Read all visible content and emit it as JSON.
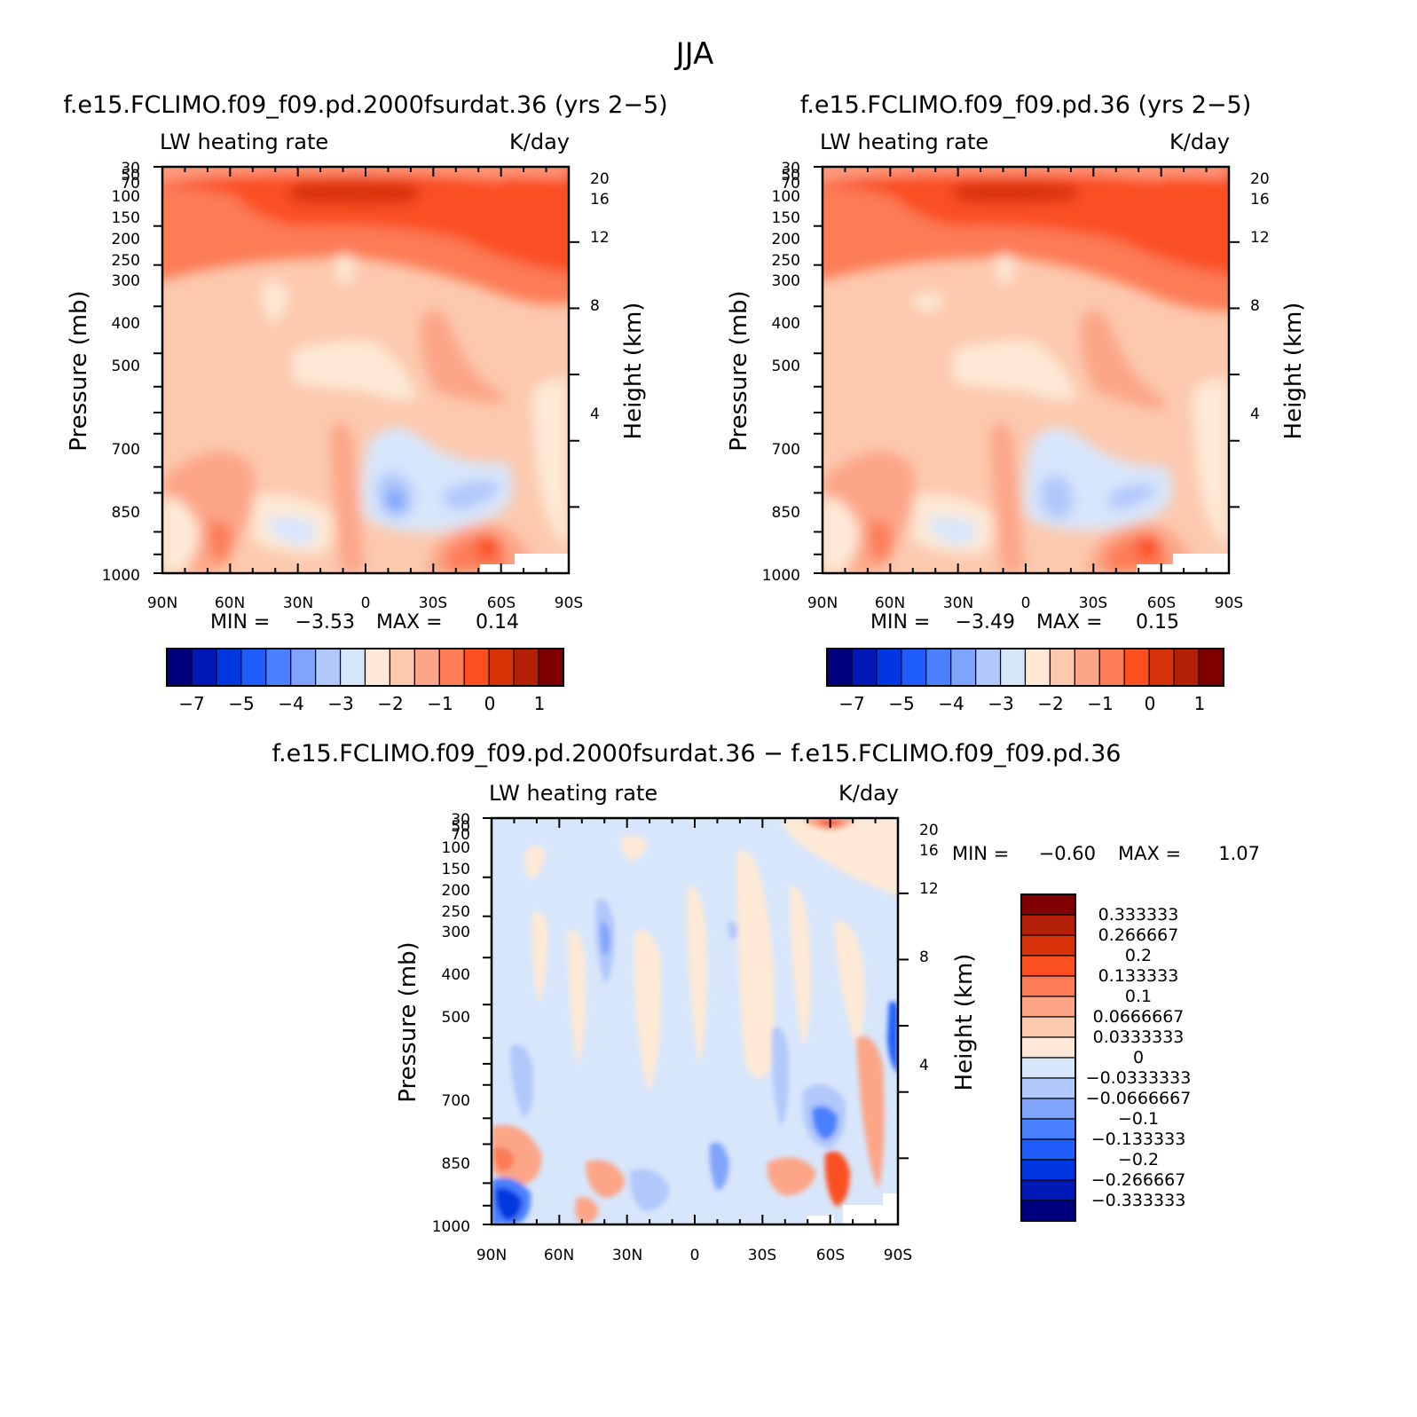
{
  "figure": {
    "title": "JJA"
  },
  "colors": {
    "absolute_scale": [
      "#00007f",
      "#0018b6",
      "#0037e0",
      "#1f5dfb",
      "#4a80fd",
      "#80a4fb",
      "#b1c8fb",
      "#d8e6fb",
      "#fde9d6",
      "#fcc9ae",
      "#fca587",
      "#fc7c56",
      "#fa5020",
      "#d83208",
      "#b41f08",
      "#800000"
    ],
    "difference_scale": [
      "#00007f",
      "#0018b6",
      "#0037e0",
      "#1f5dfb",
      "#4a80fd",
      "#80a4fb",
      "#b1c8fb",
      "#d8e6fb",
      "#fde9d6",
      "#fcc9ae",
      "#fca587",
      "#fc7c56",
      "#fa5020",
      "#d83208",
      "#b41f08",
      "#800000"
    ]
  },
  "chart_data": [
    {
      "type": "heatmap",
      "panel": "top-left",
      "title": "f.e15.FCLIMO.f09_f09.pd.2000fsurdat.36 (yrs 2−5)",
      "variable": "LW heating rate",
      "units": "K/day",
      "xlabel": "",
      "ylabel": "Pressure (mb)",
      "ylabel_right": "Height (km)",
      "x_ticks": [
        "90N",
        "60N",
        "30N",
        "0",
        "30S",
        "60S",
        "90S"
      ],
      "x_range": [
        90,
        -90
      ],
      "y_ticks": [
        "30",
        "50",
        "70",
        "100",
        "150",
        "200",
        "250",
        "300",
        "400",
        "500",
        "700",
        "850",
        "1000"
      ],
      "y_range": [
        30,
        1000
      ],
      "height_ticks": [
        "20",
        "16",
        "12",
        "8",
        "4"
      ],
      "min_label": "MIN =",
      "min_value": "−3.53",
      "max_label": "MAX =",
      "max_value": "0.14",
      "colorbar_labels": [
        "−7",
        "−5",
        "−4",
        "−3",
        "−2",
        "−1",
        "0",
        "1"
      ]
    },
    {
      "type": "heatmap",
      "panel": "top-right",
      "title": "f.e15.FCLIMO.f09_f09.pd.36 (yrs 2−5)",
      "variable": "LW heating rate",
      "units": "K/day",
      "xlabel": "",
      "ylabel": "Pressure (mb)",
      "ylabel_right": "Height (km)",
      "x_ticks": [
        "90N",
        "60N",
        "30N",
        "0",
        "30S",
        "60S",
        "90S"
      ],
      "x_range": [
        90,
        -90
      ],
      "y_ticks": [
        "30",
        "50",
        "70",
        "100",
        "150",
        "200",
        "250",
        "300",
        "400",
        "500",
        "700",
        "850",
        "1000"
      ],
      "y_range": [
        30,
        1000
      ],
      "height_ticks": [
        "20",
        "16",
        "12",
        "8",
        "4"
      ],
      "min_label": "MIN =",
      "min_value": "−3.49",
      "max_label": "MAX =",
      "max_value": "0.15",
      "colorbar_labels": [
        "−7",
        "−5",
        "−4",
        "−3",
        "−2",
        "−1",
        "0",
        "1"
      ]
    },
    {
      "type": "heatmap",
      "panel": "bottom",
      "title": "f.e15.FCLIMO.f09_f09.pd.2000fsurdat.36 − f.e15.FCLIMO.f09_f09.pd.36",
      "variable": "LW heating rate",
      "units": "K/day",
      "xlabel": "",
      "ylabel": "Pressure (mb)",
      "ylabel_right": "Height (km)",
      "x_ticks": [
        "90N",
        "60N",
        "30N",
        "0",
        "30S",
        "60S",
        "90S"
      ],
      "x_range": [
        90,
        -90
      ],
      "y_ticks": [
        "30",
        "50",
        "70",
        "100",
        "150",
        "200",
        "250",
        "300",
        "400",
        "500",
        "700",
        "850",
        "1000"
      ],
      "y_range": [
        30,
        1000
      ],
      "height_ticks": [
        "20",
        "16",
        "12",
        "8",
        "4"
      ],
      "min_label": "MIN =",
      "min_value": "−0.60",
      "max_label": "MAX =",
      "max_value": "1.07",
      "colorbar_labels": [
        "0.333333",
        "0.266667",
        "0.2",
        "0.133333",
        "0.1",
        "0.0666667",
        "0.0333333",
        "0",
        "−0.0333333",
        "−0.0666667",
        "−0.1",
        "−0.133333",
        "−0.2",
        "−0.266667",
        "−0.333333"
      ]
    }
  ]
}
